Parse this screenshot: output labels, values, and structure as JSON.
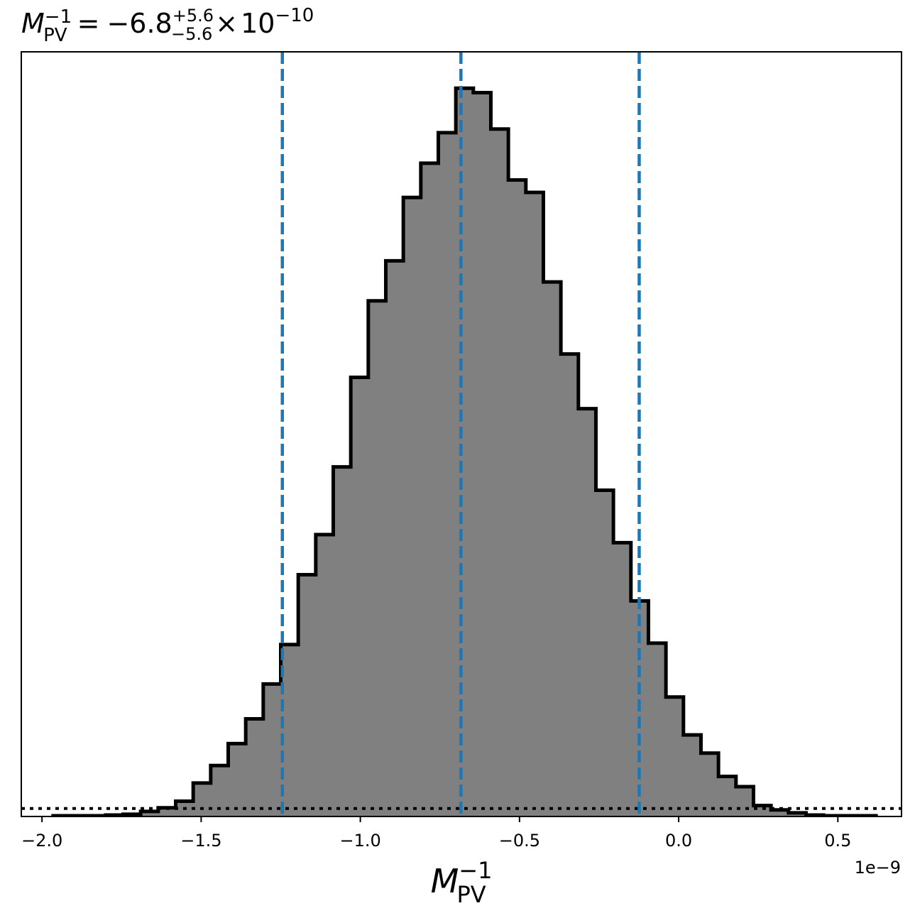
{
  "chart_data": {
    "type": "bar",
    "title": {
      "symbol": "M",
      "subscript": "PV",
      "superscript": "−1",
      "equals": "=",
      "value": "−6.8",
      "upper_err": "+5.6",
      "lower_err": "−5.6",
      "times": "×",
      "base": "10",
      "exponent": "−10"
    },
    "xlabel": {
      "symbol": "M",
      "subscript": "PV",
      "superscript": "−1"
    },
    "x_offset_label": "1e−9",
    "xlim": [
      -2.065,
      0.7
    ],
    "ylim": [
      0,
      1.05
    ],
    "xticks": [
      -2.0,
      -1.5,
      -1.0,
      -0.5,
      0.0,
      0.5
    ],
    "xtick_labels": [
      "−2.0",
      "−1.5",
      "−1.0",
      "−0.5",
      "0.0",
      "0.5"
    ],
    "bin_width": 0.055,
    "bins": [
      {
        "x0": -1.965,
        "height": 0.001
      },
      {
        "x0": -1.91,
        "height": 0.001
      },
      {
        "x0": -1.855,
        "height": 0.001
      },
      {
        "x0": -1.8,
        "height": 0.002
      },
      {
        "x0": -1.745,
        "height": 0.003
      },
      {
        "x0": -1.69,
        "height": 0.007
      },
      {
        "x0": -1.635,
        "height": 0.012
      },
      {
        "x0": -1.58,
        "height": 0.021
      },
      {
        "x0": -1.525,
        "height": 0.046
      },
      {
        "x0": -1.47,
        "height": 0.07
      },
      {
        "x0": -1.415,
        "height": 0.1
      },
      {
        "x0": -1.36,
        "height": 0.134
      },
      {
        "x0": -1.305,
        "height": 0.182
      },
      {
        "x0": -1.25,
        "height": 0.236
      },
      {
        "x0": -1.195,
        "height": 0.332
      },
      {
        "x0": -1.14,
        "height": 0.387
      },
      {
        "x0": -1.085,
        "height": 0.48
      },
      {
        "x0": -1.03,
        "height": 0.603
      },
      {
        "x0": -0.975,
        "height": 0.708
      },
      {
        "x0": -0.92,
        "height": 0.763
      },
      {
        "x0": -0.865,
        "height": 0.85
      },
      {
        "x0": -0.81,
        "height": 0.897
      },
      {
        "x0": -0.755,
        "height": 0.939
      },
      {
        "x0": -0.7,
        "height": 1.0
      },
      {
        "x0": -0.645,
        "height": 0.994
      },
      {
        "x0": -0.59,
        "height": 0.944
      },
      {
        "x0": -0.535,
        "height": 0.874
      },
      {
        "x0": -0.48,
        "height": 0.857
      },
      {
        "x0": -0.425,
        "height": 0.734
      },
      {
        "x0": -0.37,
        "height": 0.635
      },
      {
        "x0": -0.315,
        "height": 0.56
      },
      {
        "x0": -0.26,
        "height": 0.448
      },
      {
        "x0": -0.205,
        "height": 0.376
      },
      {
        "x0": -0.15,
        "height": 0.296
      },
      {
        "x0": -0.095,
        "height": 0.238
      },
      {
        "x0": -0.04,
        "height": 0.164
      },
      {
        "x0": 0.015,
        "height": 0.112
      },
      {
        "x0": 0.07,
        "height": 0.087
      },
      {
        "x0": 0.125,
        "height": 0.055
      },
      {
        "x0": 0.18,
        "height": 0.041
      },
      {
        "x0": 0.235,
        "height": 0.015
      },
      {
        "x0": 0.29,
        "height": 0.009
      },
      {
        "x0": 0.345,
        "height": 0.005
      },
      {
        "x0": 0.4,
        "height": 0.002
      },
      {
        "x0": 0.455,
        "height": 0.001
      },
      {
        "x0": 0.51,
        "height": 0.001
      },
      {
        "x0": 0.565,
        "height": 0.001
      }
    ],
    "vlines": [
      {
        "x": -1.245,
        "style": "dashed"
      },
      {
        "x": -0.684,
        "style": "dashed"
      },
      {
        "x": -0.124,
        "style": "dashed"
      }
    ],
    "hline": {
      "y": 0.011,
      "style": "dotted"
    },
    "grid": false,
    "legend": "none",
    "colors": {
      "fill": "#808080",
      "edge": "#000000",
      "vline": "#1f77b4",
      "hline": "#000000",
      "frame": "#000000"
    }
  }
}
